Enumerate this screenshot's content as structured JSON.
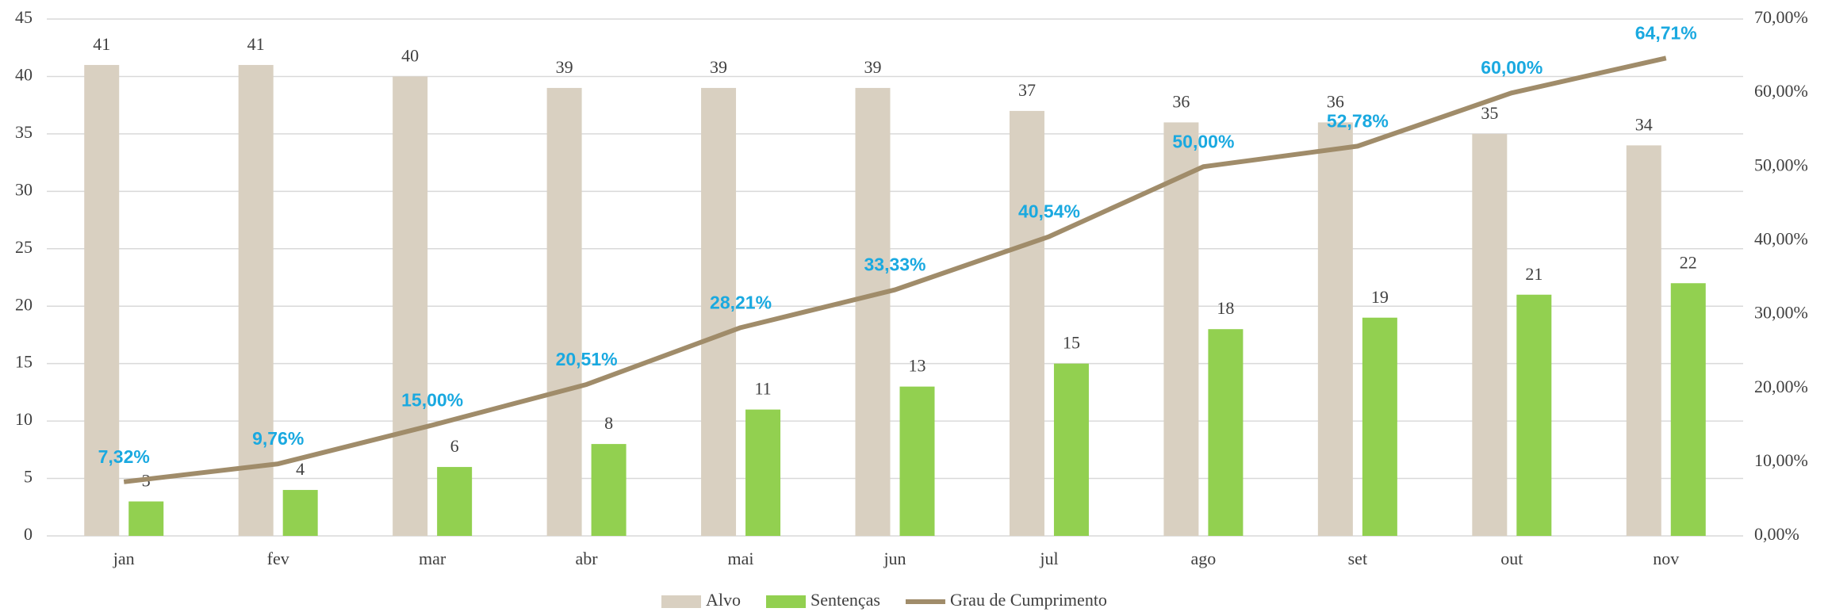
{
  "chart_data": {
    "type": "bar-line",
    "categories": [
      "jan",
      "fev",
      "mar",
      "abr",
      "mai",
      "jun",
      "jul",
      "ago",
      "set",
      "out",
      "nov"
    ],
    "series": [
      {
        "name": "Alvo",
        "type": "bar",
        "color": "#d9d0c1",
        "values": [
          41,
          41,
          40,
          39,
          39,
          39,
          37,
          36,
          36,
          35,
          34
        ]
      },
      {
        "name": "Sentenças",
        "type": "bar",
        "color": "#92d050",
        "values": [
          3,
          4,
          6,
          8,
          11,
          13,
          15,
          18,
          19,
          21,
          22
        ]
      },
      {
        "name": "Grau de Cumprimento",
        "type": "line",
        "axis": "y2",
        "color": "#a08c6a",
        "values": [
          7.32,
          9.76,
          15,
          20.51,
          28.21,
          33.33,
          40.54,
          50,
          52.78,
          60,
          64.71
        ],
        "value_labels": [
          "7,32%",
          "9,76%",
          "15,00%",
          "20,51%",
          "28,21%",
          "33,33%",
          "40,54%",
          "50,00%",
          "52,78%",
          "60,00%",
          "64,71%"
        ]
      }
    ],
    "ylim": [
      0,
      45
    ],
    "yticks": [
      0,
      5,
      10,
      15,
      20,
      25,
      30,
      35,
      40,
      45
    ],
    "y2lim": [
      0,
      70
    ],
    "y2ticks": [
      {
        "value": 0,
        "label": "0,00%"
      },
      {
        "value": 10,
        "label": "10,00%"
      },
      {
        "value": 20,
        "label": "20,00%"
      },
      {
        "value": 30,
        "label": "30,00%"
      },
      {
        "value": 40,
        "label": "40,00%"
      },
      {
        "value": 50,
        "label": "50,00%"
      },
      {
        "value": 60,
        "label": "60,00%"
      },
      {
        "value": 70,
        "label": "70,00%"
      }
    ],
    "grid": true,
    "legend": "bottom"
  }
}
